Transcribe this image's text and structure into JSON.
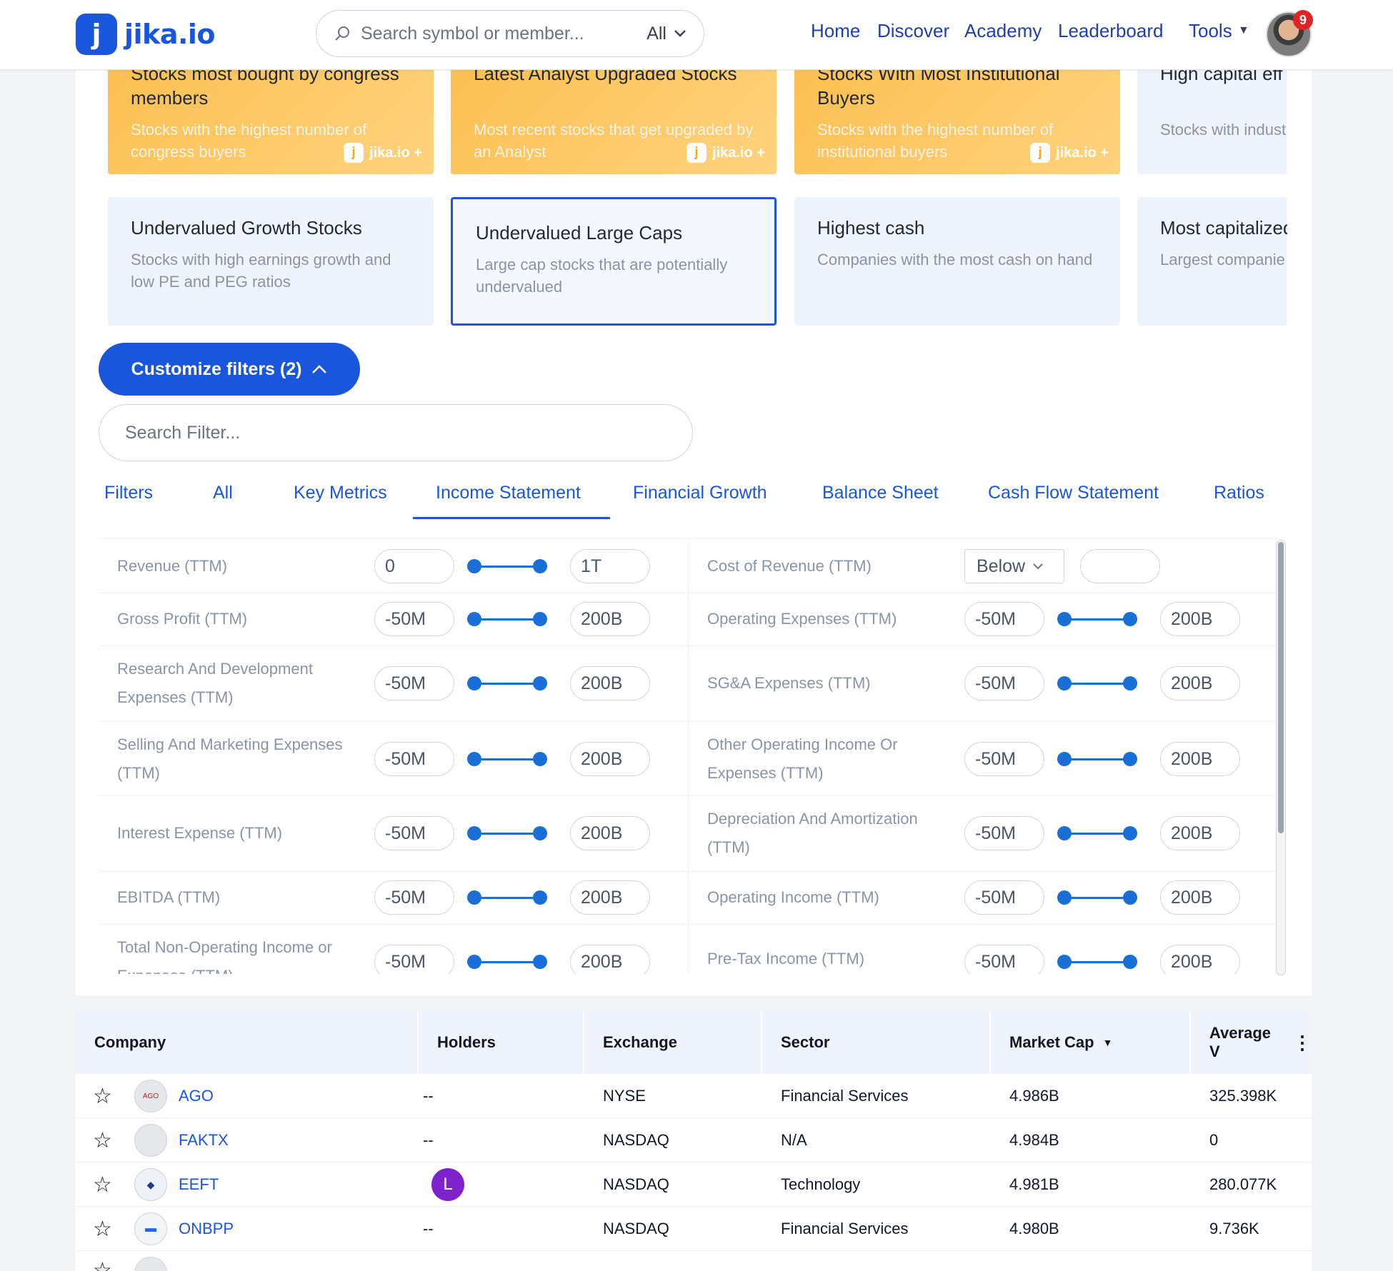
{
  "brand": {
    "mark": "j",
    "name": "jika.io"
  },
  "search": {
    "placeholder": "Search symbol or member...",
    "scope": "All"
  },
  "nav": {
    "home": "Home",
    "discover": "Discover",
    "academy": "Academy",
    "leaderboard": "Leaderboard",
    "tools": "Tools"
  },
  "notifications": "9",
  "top_cards": [
    {
      "title": "Stocks most bought by congress members",
      "desc": "Stocks with the highest number of congress buyers",
      "brand": "jika.io +"
    },
    {
      "title": "Latest Analyst Upgraded Stocks",
      "desc": "Most recent stocks that get upgraded by an Analyst",
      "brand": "jika.io +"
    },
    {
      "title": "Stocks With Most Institutional Buyers",
      "desc": "Stocks with the highest number of institutional buyers",
      "brand": "jika.io +"
    },
    {
      "title": "High capital eff",
      "desc": "Stocks with indust efficiency ratios"
    }
  ],
  "cards": [
    {
      "title": "Undervalued Growth Stocks",
      "desc": "Stocks with high earnings growth and low PE and PEG ratios"
    },
    {
      "title": "Undervalued Large Caps",
      "desc": "Large cap stocks that are potentially undervalued"
    },
    {
      "title": "Highest cash",
      "desc": "Companies with the most cash on hand"
    },
    {
      "title": "Most capitalized",
      "desc": "Largest companie"
    }
  ],
  "customize": {
    "label": "Customize filters (2)"
  },
  "filter_search": {
    "placeholder": "Search Filter..."
  },
  "tabs": [
    "Filters",
    "All",
    "Key Metrics",
    "Income Statement",
    "Financial Growth",
    "Balance Sheet",
    "Cash Flow Statement",
    "Ratios"
  ],
  "active_tab": "Income Statement",
  "filters_left": [
    {
      "label": "Revenue (TTM)",
      "min": "0",
      "max": "1T"
    },
    {
      "label": "Gross Profit (TTM)",
      "min": "-50M",
      "max": "200B"
    },
    {
      "label": "Research And Development Expenses (TTM)",
      "min": "-50M",
      "max": "200B"
    },
    {
      "label": "Selling And Marketing Expenses (TTM)",
      "min": "-50M",
      "max": "200B"
    },
    {
      "label": "Interest Expense (TTM)",
      "min": "-50M",
      "max": "200B"
    },
    {
      "label": "EBITDA (TTM)",
      "min": "-50M",
      "max": "200B"
    },
    {
      "label": "Total Non-Operating Income or Expenses (TTM)",
      "min": "-50M",
      "max": "200B"
    }
  ],
  "filters_right": [
    {
      "label": "Cost of Revenue (TTM)",
      "select": "Below",
      "value": ""
    },
    {
      "label": "Operating Expenses (TTM)",
      "min": "-50M",
      "max": "200B"
    },
    {
      "label": "SG&A Expenses (TTM)",
      "min": "-50M",
      "max": "200B"
    },
    {
      "label": "Other Operating Income Or Expenses (TTM)",
      "min": "-50M",
      "max": "200B"
    },
    {
      "label": "Depreciation And Amortization (TTM)",
      "min": "-50M",
      "max": "200B"
    },
    {
      "label": "Operating Income (TTM)",
      "min": "-50M",
      "max": "200B"
    },
    {
      "label": "Pre-Tax Income (TTM)",
      "min": "-50M",
      "max": "200B"
    }
  ],
  "table": {
    "columns": [
      "Company",
      "Holders",
      "Exchange",
      "Sector",
      "Market Cap",
      "Average V"
    ],
    "rows": [
      {
        "symbol": "AGO",
        "holders": "--",
        "exchange": "NYSE",
        "sector": "Financial Services",
        "market_cap": "4.986B",
        "avg_vol": "325.398K"
      },
      {
        "symbol": "FAKTX",
        "holders": "--",
        "exchange": "NASDAQ",
        "sector": "N/A",
        "market_cap": "4.984B",
        "avg_vol": "0"
      },
      {
        "symbol": "EEFT",
        "holders": "L",
        "exchange": "NASDAQ",
        "sector": "Technology",
        "market_cap": "4.981B",
        "avg_vol": "280.077K"
      },
      {
        "symbol": "ONBPP",
        "holders": "--",
        "exchange": "NASDAQ",
        "sector": "Financial Services",
        "market_cap": "4.980B",
        "avg_vol": "9.736K"
      }
    ]
  },
  "colors": {
    "accent": "#1a56db",
    "orange": "#fbbf4f",
    "card_blue": "#eef3fc"
  }
}
